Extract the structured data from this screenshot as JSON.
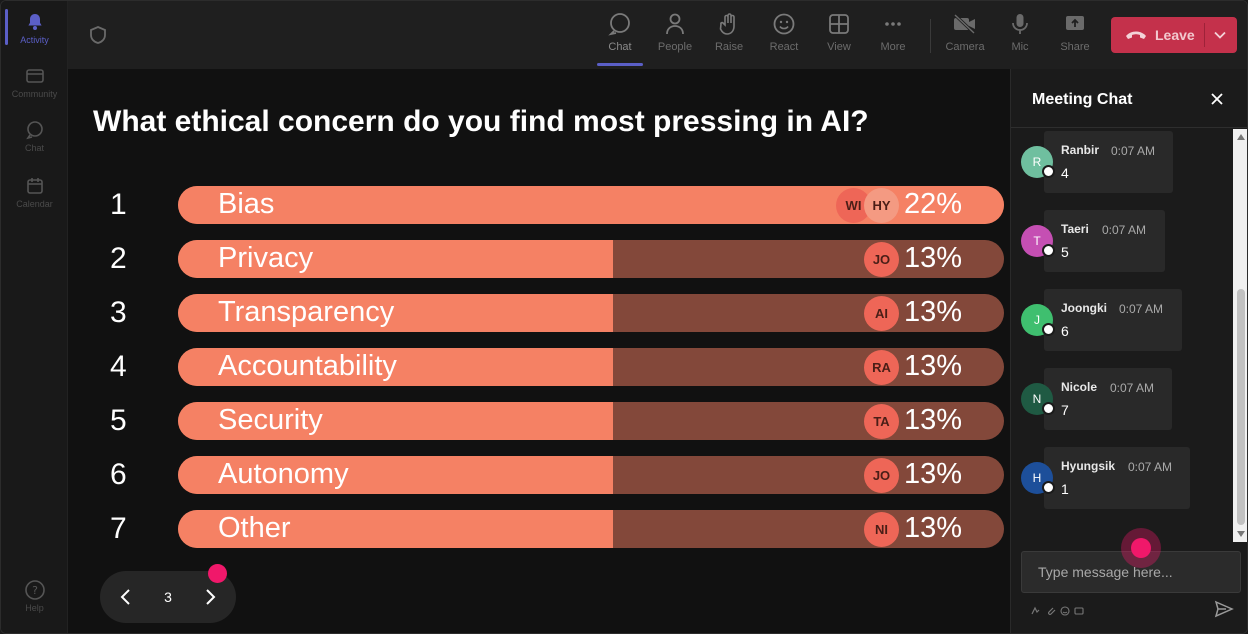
{
  "rail": {
    "items": [
      {
        "label": "Activity",
        "icon": "bell-icon",
        "active": true
      },
      {
        "label": "Community",
        "icon": "community-icon"
      },
      {
        "label": "Chat",
        "icon": "chat-icon"
      },
      {
        "label": "Calendar",
        "icon": "calendar-icon"
      }
    ],
    "help": {
      "label": "Help",
      "icon": "help-icon"
    }
  },
  "toolbar": {
    "chat": "Chat",
    "people": "People",
    "raise": "Raise",
    "react": "React",
    "view": "View",
    "more": "More",
    "camera": "Camera",
    "mic": "Mic",
    "share": "Share",
    "leave": "Leave"
  },
  "poll": {
    "question": "What ethical concern do you find most pressing in AI?",
    "options": [
      {
        "rank": "1",
        "label": "Bias",
        "percent": "22%",
        "fill": 1.0,
        "avatars": [
          "WI",
          "HY"
        ]
      },
      {
        "rank": "2",
        "label": "Privacy",
        "percent": "13%",
        "fill": 0.527,
        "avatars": [
          "JO"
        ]
      },
      {
        "rank": "3",
        "label": "Transparency",
        "percent": "13%",
        "fill": 0.527,
        "avatars": [
          "AI"
        ]
      },
      {
        "rank": "4",
        "label": "Accountability",
        "percent": "13%",
        "fill": 0.527,
        "avatars": [
          "RA"
        ]
      },
      {
        "rank": "5",
        "label": "Security",
        "percent": "13%",
        "fill": 0.527,
        "avatars": [
          "TA"
        ]
      },
      {
        "rank": "6",
        "label": "Autonomy",
        "percent": "13%",
        "fill": 0.527,
        "avatars": [
          "JO"
        ]
      },
      {
        "rank": "7",
        "label": "Other",
        "percent": "13%",
        "fill": 0.527,
        "avatars": [
          "NI"
        ]
      }
    ],
    "page": "3"
  },
  "chat": {
    "title": "Meeting Chat",
    "messages": [
      {
        "initial": "R",
        "name": "Ranbir",
        "time": "0:07 AM",
        "text": "4",
        "color": "#6fbf9f"
      },
      {
        "initial": "T",
        "name": "Taeri",
        "time": "0:07 AM",
        "text": "5",
        "color": "#c54fb3"
      },
      {
        "initial": "J",
        "name": "Joongki",
        "time": "0:07 AM",
        "text": "6",
        "color": "#3fbf6f"
      },
      {
        "initial": "N",
        "name": "Nicole",
        "time": "0:07 AM",
        "text": "7",
        "color": "#1f5a43"
      },
      {
        "initial": "H",
        "name": "Hyungsik",
        "time": "0:07 AM",
        "text": "1",
        "color": "#1d4f9a"
      }
    ],
    "input_placeholder": "Type message here..."
  },
  "colors": {
    "accent": "#5b5fc7",
    "leave": "#c4314b",
    "bar_fill": "#f58164",
    "bar_track": "#83483a",
    "cursor": "#f0186a"
  }
}
